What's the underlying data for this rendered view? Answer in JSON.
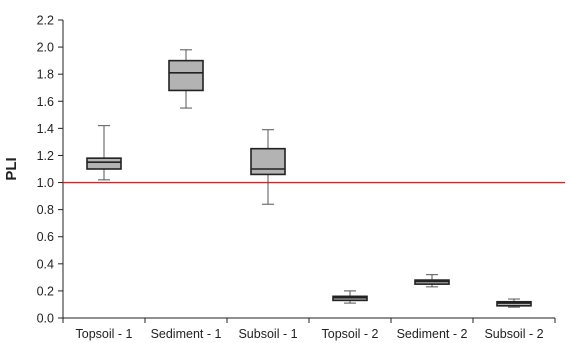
{
  "chart_data": {
    "type": "box",
    "title": "",
    "xlabel": "",
    "ylabel": "PLI",
    "ylim": [
      0,
      2.2
    ],
    "yticks": [
      "0.0",
      "0.2",
      "0.4",
      "0.6",
      "0.8",
      "1.0",
      "1.2",
      "1.4",
      "1.6",
      "1.8",
      "2.0",
      "2.2"
    ],
    "categories": [
      "Topsoil - 1",
      "Sediment - 1",
      "Subsoil - 1",
      "Topsoil - 2",
      "Sediment - 2",
      "Subsoil - 2"
    ],
    "boxes": [
      {
        "category": "Topsoil - 1",
        "min": 1.02,
        "q1": 1.1,
        "median": 1.15,
        "q3": 1.18,
        "max": 1.42
      },
      {
        "category": "Sediment - 1",
        "min": 1.55,
        "q1": 1.68,
        "median": 1.81,
        "q3": 1.9,
        "max": 1.98
      },
      {
        "category": "Subsoil - 1",
        "min": 0.84,
        "q1": 1.06,
        "median": 1.1,
        "q3": 1.25,
        "max": 1.39
      },
      {
        "category": "Topsoil - 2",
        "min": 0.11,
        "q1": 0.13,
        "median": 0.15,
        "q3": 0.16,
        "max": 0.2
      },
      {
        "category": "Sediment - 2",
        "min": 0.23,
        "q1": 0.25,
        "median": 0.27,
        "q3": 0.28,
        "max": 0.32
      },
      {
        "category": "Subsoil - 2",
        "min": 0.08,
        "q1": 0.09,
        "median": 0.11,
        "q3": 0.12,
        "max": 0.14
      }
    ],
    "reference_line": {
      "y": 1.0,
      "color": "#e02020"
    },
    "box_color": "#b3b3b3",
    "grid": false,
    "legend": "none"
  }
}
